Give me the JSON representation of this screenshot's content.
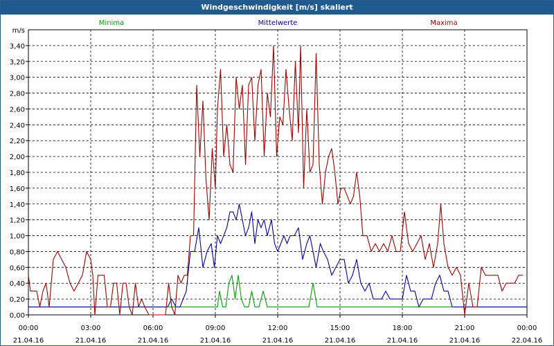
{
  "window": {
    "title": "Windgeschwindigkeit [m/s] skaliert"
  },
  "legend": [
    {
      "name": "Minima",
      "color": "#00a000"
    },
    {
      "name": "Mittelwerte",
      "color": "#0000a0"
    },
    {
      "name": "Maxima",
      "color": "#a00000"
    }
  ],
  "chart_data": {
    "type": "line",
    "ylabel": "m/s",
    "ylim": [
      0,
      3.6
    ],
    "yticks": [
      "0,00",
      "0,20",
      "0,40",
      "0,60",
      "0,80",
      "1,00",
      "1,20",
      "1,40",
      "1,60",
      "1,80",
      "2,00",
      "2,20",
      "2,40",
      "2,60",
      "2,80",
      "3,00",
      "3,20",
      "3,40"
    ],
    "xlim_hours": [
      0,
      24
    ],
    "xticks": [
      {
        "time": "00:00",
        "date": "21.04.16"
      },
      {
        "time": "03:00",
        "date": "21.04.16"
      },
      {
        "time": "06:00",
        "date": "21.04.16"
      },
      {
        "time": "09:00",
        "date": "21.04.16"
      },
      {
        "time": "12:00",
        "date": "21.04.16"
      },
      {
        "time": "15:00",
        "date": "21.04.16"
      },
      {
        "time": "18:00",
        "date": "21.04.16"
      },
      {
        "time": "21:00",
        "date": "21.04.16"
      },
      {
        "time": "00:00",
        "date": "22.04.16"
      }
    ],
    "grid": true,
    "series": [
      {
        "name": "Minima",
        "color": "#00a000",
        "points": [
          [
            0,
            0.1
          ],
          [
            9.0,
            0.1
          ],
          [
            9.1,
            0.1
          ],
          [
            9.2,
            0.3
          ],
          [
            9.35,
            0.1
          ],
          [
            9.5,
            0.1
          ],
          [
            9.65,
            0.4
          ],
          [
            9.8,
            0.5
          ],
          [
            9.95,
            0.2
          ],
          [
            10.1,
            0.5
          ],
          [
            10.25,
            0.2
          ],
          [
            10.4,
            0.1
          ],
          [
            10.6,
            0.1
          ],
          [
            10.75,
            0.3
          ],
          [
            10.9,
            0.1
          ],
          [
            11.1,
            0.1
          ],
          [
            11.3,
            0.3
          ],
          [
            11.5,
            0.1
          ],
          [
            11.7,
            0.1
          ],
          [
            12.0,
            0.1
          ],
          [
            12.2,
            0.1
          ],
          [
            13.5,
            0.1
          ],
          [
            13.7,
            0.4
          ],
          [
            13.9,
            0.1
          ],
          [
            14.1,
            0.1
          ],
          [
            24,
            0.1
          ]
        ]
      },
      {
        "name": "Mittelwerte",
        "color": "#0000a0",
        "points": [
          [
            0,
            0.1
          ],
          [
            6.7,
            0.1
          ],
          [
            6.9,
            0.2
          ],
          [
            7.1,
            0.1
          ],
          [
            7.3,
            0.1
          ],
          [
            7.6,
            0.3
          ],
          [
            7.8,
            0.8
          ],
          [
            8.0,
            0.8
          ],
          [
            8.2,
            1.1
          ],
          [
            8.4,
            0.6
          ],
          [
            8.6,
            0.8
          ],
          [
            8.8,
            0.9
          ],
          [
            8.95,
            0.6
          ],
          [
            9.1,
            1.0
          ],
          [
            9.25,
            0.9
          ],
          [
            9.4,
            1.0
          ],
          [
            9.55,
            1.1
          ],
          [
            9.7,
            1.3
          ],
          [
            9.85,
            1.3
          ],
          [
            10.0,
            1.2
          ],
          [
            10.15,
            1.4
          ],
          [
            10.3,
            1.2
          ],
          [
            10.45,
            1.0
          ],
          [
            10.6,
            1.1
          ],
          [
            10.75,
            1.3
          ],
          [
            10.9,
            0.9
          ],
          [
            11.05,
            1.2
          ],
          [
            11.2,
            1.1
          ],
          [
            11.35,
            1.2
          ],
          [
            11.5,
            1.0
          ],
          [
            11.7,
            1.2
          ],
          [
            11.85,
            0.9
          ],
          [
            12.0,
            0.8
          ],
          [
            12.15,
            0.9
          ],
          [
            12.3,
            1.0
          ],
          [
            12.45,
            0.9
          ],
          [
            12.6,
            1.0
          ],
          [
            12.8,
            1.0
          ],
          [
            13.0,
            1.1
          ],
          [
            13.2,
            0.7
          ],
          [
            13.4,
            0.9
          ],
          [
            13.55,
            1.0
          ],
          [
            13.7,
            0.8
          ],
          [
            13.85,
            0.6
          ],
          [
            14.05,
            0.9
          ],
          [
            14.2,
            0.8
          ],
          [
            14.4,
            0.7
          ],
          [
            14.6,
            0.5
          ],
          [
            14.8,
            0.6
          ],
          [
            15.0,
            0.7
          ],
          [
            15.2,
            0.7
          ],
          [
            15.4,
            0.4
          ],
          [
            15.6,
            0.5
          ],
          [
            15.8,
            0.7
          ],
          [
            16.0,
            0.4
          ],
          [
            16.2,
            0.3
          ],
          [
            16.4,
            0.4
          ],
          [
            16.6,
            0.2
          ],
          [
            16.8,
            0.2
          ],
          [
            17.0,
            0.2
          ],
          [
            17.2,
            0.3
          ],
          [
            17.4,
            0.2
          ],
          [
            17.6,
            0.2
          ],
          [
            17.8,
            0.2
          ],
          [
            18.0,
            0.2
          ],
          [
            18.2,
            0.5
          ],
          [
            18.4,
            0.3
          ],
          [
            18.6,
            0.3
          ],
          [
            18.8,
            0.1
          ],
          [
            19.0,
            0.2
          ],
          [
            19.2,
            0.2
          ],
          [
            19.4,
            0.2
          ],
          [
            19.6,
            0.4
          ],
          [
            19.8,
            0.5
          ],
          [
            20.0,
            0.3
          ],
          [
            20.2,
            0.3
          ],
          [
            20.4,
            0.1
          ],
          [
            20.6,
            0.1
          ],
          [
            24,
            0.1
          ]
        ]
      },
      {
        "name": "Maxima",
        "color": "#a00000",
        "points": [
          [
            0,
            0.5
          ],
          [
            0.1,
            0.3
          ],
          [
            0.25,
            0.3
          ],
          [
            0.4,
            0.3
          ],
          [
            0.55,
            0.1
          ],
          [
            0.7,
            0.3
          ],
          [
            0.85,
            0.4
          ],
          [
            1.0,
            0.1
          ],
          [
            1.2,
            0.7
          ],
          [
            1.4,
            0.8
          ],
          [
            1.6,
            0.7
          ],
          [
            1.8,
            0.6
          ],
          [
            2.0,
            0.4
          ],
          [
            2.2,
            0.3
          ],
          [
            2.4,
            0.4
          ],
          [
            2.6,
            0.5
          ],
          [
            2.8,
            0.8
          ],
          [
            3.0,
            0.7
          ],
          [
            3.1,
            0.5
          ],
          [
            3.2,
            0.0
          ],
          [
            3.35,
            0.5
          ],
          [
            3.5,
            0.5
          ],
          [
            3.65,
            0.5
          ],
          [
            3.8,
            0.1
          ],
          [
            3.95,
            0.1
          ],
          [
            4.1,
            0.4
          ],
          [
            4.25,
            0.4
          ],
          [
            4.4,
            0.0
          ],
          [
            4.55,
            0.4
          ],
          [
            4.7,
            0.4
          ],
          [
            4.85,
            0.1
          ],
          [
            5.0,
            0.0
          ],
          [
            5.15,
            0.4
          ],
          [
            5.3,
            0.1
          ],
          [
            5.45,
            0.2
          ],
          [
            5.6,
            0.1
          ],
          [
            5.8,
            0.0
          ],
          [
            6.6,
            0.0
          ],
          [
            6.75,
            0.4
          ],
          [
            6.9,
            0.1
          ],
          [
            7.05,
            0.0
          ],
          [
            7.2,
            0.5
          ],
          [
            7.35,
            0.4
          ],
          [
            7.5,
            0.5
          ],
          [
            7.65,
            0.5
          ],
          [
            7.8,
            1.0
          ],
          [
            7.95,
            1.0
          ],
          [
            8.1,
            2.9
          ],
          [
            8.25,
            2.0
          ],
          [
            8.4,
            2.7
          ],
          [
            8.55,
            1.7
          ],
          [
            8.7,
            1.2
          ],
          [
            8.85,
            2.1
          ],
          [
            9.0,
            1.6
          ],
          [
            9.1,
            2.6
          ],
          [
            9.25,
            3.1
          ],
          [
            9.4,
            2.0
          ],
          [
            9.55,
            2.4
          ],
          [
            9.7,
            1.9
          ],
          [
            9.85,
            1.8
          ],
          [
            10.0,
            3.0
          ],
          [
            10.15,
            2.6
          ],
          [
            10.3,
            2.9
          ],
          [
            10.45,
            1.9
          ],
          [
            10.6,
            2.9
          ],
          [
            10.75,
            3.0
          ],
          [
            10.9,
            2.2
          ],
          [
            11.05,
            2.9
          ],
          [
            11.2,
            3.1
          ],
          [
            11.35,
            2.0
          ],
          [
            11.5,
            2.8
          ],
          [
            11.65,
            2.5
          ],
          [
            11.8,
            3.4
          ],
          [
            11.95,
            2.0
          ],
          [
            12.1,
            2.5
          ],
          [
            12.25,
            2.4
          ],
          [
            12.4,
            3.1
          ],
          [
            12.55,
            2.6
          ],
          [
            12.7,
            2.2
          ],
          [
            12.85,
            3.2
          ],
          [
            13.0,
            2.3
          ],
          [
            13.1,
            3.4
          ],
          [
            13.25,
            1.6
          ],
          [
            13.4,
            2.6
          ],
          [
            13.55,
            1.8
          ],
          [
            13.7,
            1.9
          ],
          [
            13.85,
            3.3
          ],
          [
            14.0,
            1.9
          ],
          [
            14.15,
            1.4
          ],
          [
            14.3,
            1.8
          ],
          [
            14.45,
            2.0
          ],
          [
            14.6,
            2.1
          ],
          [
            14.75,
            1.8
          ],
          [
            14.9,
            1.4
          ],
          [
            15.05,
            1.6
          ],
          [
            15.2,
            1.6
          ],
          [
            15.35,
            1.5
          ],
          [
            15.5,
            1.4
          ],
          [
            15.65,
            1.5
          ],
          [
            15.8,
            1.8
          ],
          [
            15.95,
            1.5
          ],
          [
            16.1,
            1.0
          ],
          [
            16.3,
            1.0
          ],
          [
            16.5,
            0.8
          ],
          [
            16.7,
            0.9
          ],
          [
            16.9,
            0.8
          ],
          [
            17.1,
            0.9
          ],
          [
            17.3,
            0.8
          ],
          [
            17.5,
            1.0
          ],
          [
            17.7,
            0.8
          ],
          [
            17.9,
            0.8
          ],
          [
            18.1,
            1.3
          ],
          [
            18.3,
            0.9
          ],
          [
            18.5,
            0.8
          ],
          [
            18.7,
            0.9
          ],
          [
            18.9,
            1.0
          ],
          [
            19.1,
            0.7
          ],
          [
            19.3,
            0.9
          ],
          [
            19.5,
            0.6
          ],
          [
            19.7,
            0.9
          ],
          [
            19.85,
            1.4
          ],
          [
            20.0,
            0.9
          ],
          [
            20.2,
            0.6
          ],
          [
            20.4,
            0.5
          ],
          [
            20.6,
            0.6
          ],
          [
            20.8,
            0.5
          ],
          [
            21.0,
            0.0
          ],
          [
            21.2,
            0.4
          ],
          [
            21.4,
            0.1
          ],
          [
            21.6,
            0.1
          ],
          [
            21.8,
            0.6
          ],
          [
            22.0,
            0.5
          ],
          [
            22.2,
            0.5
          ],
          [
            22.4,
            0.5
          ],
          [
            22.6,
            0.5
          ],
          [
            22.8,
            0.3
          ],
          [
            23.0,
            0.4
          ],
          [
            23.2,
            0.4
          ],
          [
            23.4,
            0.4
          ],
          [
            23.6,
            0.5
          ],
          [
            23.8,
            0.5
          ]
        ]
      }
    ]
  }
}
